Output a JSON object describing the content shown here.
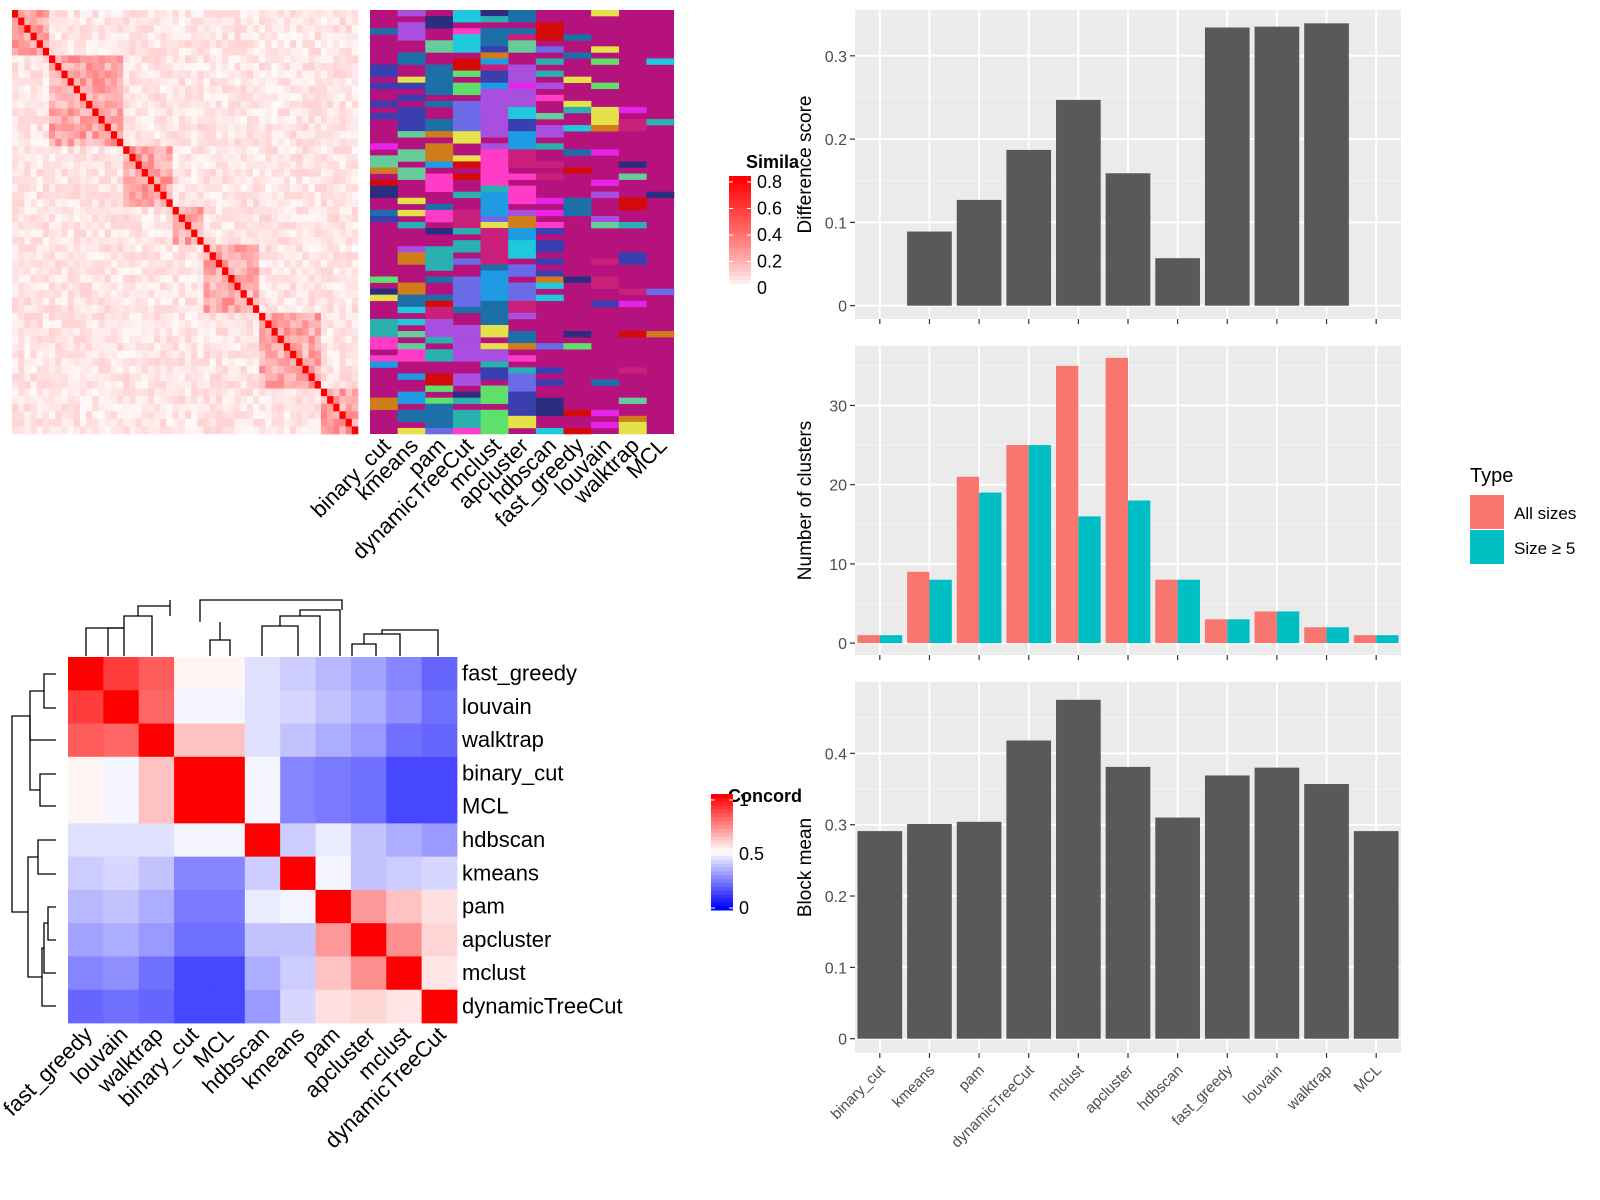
{
  "similarity_legend": {
    "title": "Simila",
    "ticks": [
      "0.8",
      "0.6",
      "0.4",
      "0.2",
      "0"
    ],
    "colors": [
      "#ffffff",
      "#ff0000"
    ]
  },
  "concordance_legend": {
    "title": "Concord",
    "ticks": [
      "1",
      "0.5",
      "0"
    ],
    "colors": [
      "#0000ff",
      "#ffffff",
      "#ff0000"
    ]
  },
  "type_legend": {
    "title": "Type",
    "items": [
      {
        "label": "All sizes",
        "color": "#F8766D"
      },
      {
        "label": "Size ≥ 5",
        "color": "#00BFC4"
      }
    ]
  },
  "cluster_panel": {
    "column_labels": [
      "binary_cut",
      "kmeans",
      "pam",
      "dynamicTreeCut",
      "mclust",
      "apcluster",
      "hdbscan",
      "fast_greedy",
      "louvain",
      "walktrap",
      "MCL"
    ]
  },
  "chart_data": [
    {
      "type": "heatmap",
      "title": "",
      "row_labels": [
        "fast_greedy",
        "louvain",
        "walktrap",
        "binary_cut",
        "MCL",
        "hdbscan",
        "kmeans",
        "pam",
        "apcluster",
        "mclust",
        "dynamicTreeCut"
      ],
      "col_labels": [
        "fast_greedy",
        "louvain",
        "walktrap",
        "binary_cut",
        "MCL",
        "hdbscan",
        "kmeans",
        "pam",
        "apcluster",
        "mclust",
        "dynamicTreeCut"
      ],
      "legend_title": "Concord",
      "value_range": [
        0,
        1
      ],
      "values": [
        [
          1.0,
          0.88,
          0.82,
          0.52,
          0.52,
          0.44,
          0.4,
          0.36,
          0.32,
          0.26,
          0.2
        ],
        [
          0.88,
          1.0,
          0.8,
          0.48,
          0.48,
          0.44,
          0.42,
          0.38,
          0.34,
          0.28,
          0.22
        ],
        [
          0.82,
          0.8,
          1.0,
          0.62,
          0.62,
          0.44,
          0.38,
          0.34,
          0.3,
          0.22,
          0.2
        ],
        [
          0.52,
          0.48,
          0.62,
          1.0,
          1.0,
          0.48,
          0.26,
          0.24,
          0.22,
          0.14,
          0.14
        ],
        [
          0.52,
          0.48,
          0.62,
          1.0,
          1.0,
          0.48,
          0.26,
          0.24,
          0.22,
          0.14,
          0.14
        ],
        [
          0.44,
          0.44,
          0.44,
          0.48,
          0.48,
          1.0,
          0.4,
          0.46,
          0.38,
          0.34,
          0.3
        ],
        [
          0.4,
          0.42,
          0.38,
          0.26,
          0.26,
          0.4,
          1.0,
          0.48,
          0.38,
          0.4,
          0.42
        ],
        [
          0.36,
          0.38,
          0.34,
          0.24,
          0.24,
          0.46,
          0.48,
          1.0,
          0.7,
          0.62,
          0.56
        ],
        [
          0.32,
          0.34,
          0.3,
          0.22,
          0.22,
          0.38,
          0.38,
          0.7,
          1.0,
          0.72,
          0.58
        ],
        [
          0.26,
          0.28,
          0.22,
          0.14,
          0.14,
          0.34,
          0.4,
          0.62,
          0.72,
          1.0,
          0.55
        ],
        [
          0.2,
          0.22,
          0.2,
          0.14,
          0.14,
          0.3,
          0.42,
          0.56,
          0.58,
          0.55,
          1.0
        ]
      ]
    },
    {
      "type": "bar",
      "title": "",
      "categories": [
        "binary_cut",
        "kmeans",
        "pam",
        "dynamicTreeCut",
        "mclust",
        "apcluster",
        "hdbscan",
        "fast_greedy",
        "louvain",
        "walktrap",
        "MCL"
      ],
      "values": [
        0.0,
        0.089,
        0.127,
        0.187,
        0.247,
        0.159,
        0.057,
        0.334,
        0.335,
        0.339,
        0.0
      ],
      "xlabel": "",
      "ylabel": "Difference score",
      "ylim": [
        -0.016,
        0.355
      ],
      "yticks": [
        0.0,
        0.1,
        0.2,
        0.3
      ],
      "grid": true
    },
    {
      "type": "bar",
      "title": "",
      "categories": [
        "binary_cut",
        "kmeans",
        "pam",
        "dynamicTreeCut",
        "mclust",
        "apcluster",
        "hdbscan",
        "fast_greedy",
        "louvain",
        "walktrap",
        "MCL"
      ],
      "series": [
        {
          "name": "All sizes",
          "values": [
            1,
            9,
            21,
            25,
            35,
            36,
            8,
            3,
            4,
            2,
            1
          ]
        },
        {
          "name": "Size ≥ 5",
          "values": [
            1,
            8,
            19,
            25,
            16,
            18,
            8,
            3,
            4,
            2,
            1
          ]
        }
      ],
      "xlabel": "",
      "ylabel": "Number of clusters",
      "ylim": [
        -1.5,
        37.5
      ],
      "yticks": [
        0,
        10,
        20,
        30
      ],
      "legend_title": "Type",
      "legend_position": "right",
      "grid": true
    },
    {
      "type": "bar",
      "title": "",
      "categories": [
        "binary_cut",
        "kmeans",
        "pam",
        "dynamicTreeCut",
        "mclust",
        "apcluster",
        "hdbscan",
        "fast_greedy",
        "louvain",
        "walktrap",
        "MCL"
      ],
      "values": [
        0.291,
        0.301,
        0.304,
        0.418,
        0.475,
        0.381,
        0.31,
        0.369,
        0.38,
        0.357,
        0.291
      ],
      "xlabel": "",
      "ylabel": "Block mean",
      "ylim": [
        -0.02,
        0.5
      ],
      "yticks": [
        0.0,
        0.1,
        0.2,
        0.3,
        0.4
      ],
      "grid": true
    }
  ]
}
